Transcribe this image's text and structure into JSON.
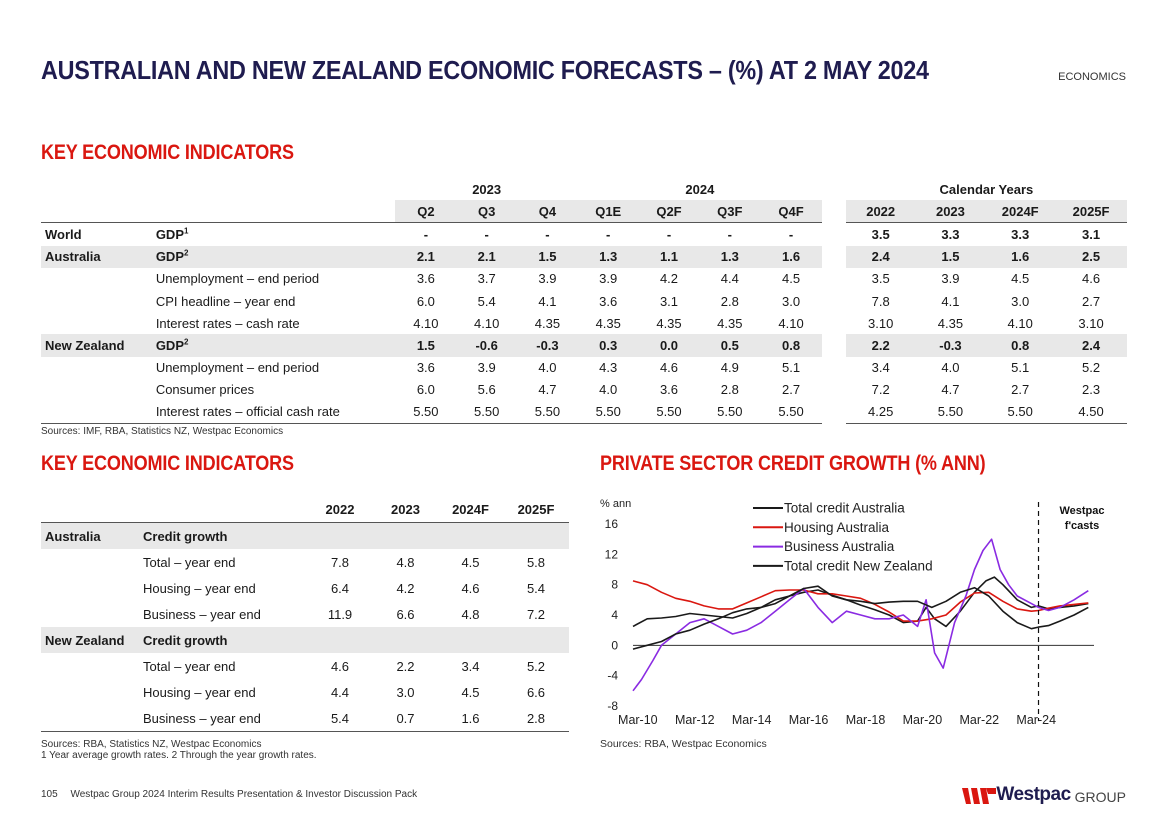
{
  "header": {
    "title": "AUSTRALIAN AND NEW ZEALAND ECONOMIC FORECASTS – (%) AT 2 MAY 2024",
    "section_tag": "ECONOMICS"
  },
  "indicators": {
    "heading": "KEY ECONOMIC INDICATORS",
    "year_2023": "2023",
    "year_2024": "2024",
    "calendar_years": "Calendar Years",
    "quarter_headers": [
      "Q2",
      "Q3",
      "Q4",
      "Q1E",
      "Q2F",
      "Q3F",
      "Q4F"
    ],
    "annual_headers": [
      "2022",
      "2023",
      "2024F",
      "2025F"
    ],
    "rows": [
      {
        "region": "World",
        "indicator": "GDP",
        "sup": "1",
        "quarters": [
          "-",
          "-",
          "-",
          "-",
          "-",
          "-",
          "-"
        ],
        "annual": [
          "3.5",
          "3.3",
          "3.3",
          "3.1"
        ]
      },
      {
        "region": "Australia",
        "indicator": "GDP",
        "sup": "2",
        "quarters": [
          "2.1",
          "2.1",
          "1.5",
          "1.3",
          "1.1",
          "1.3",
          "1.6"
        ],
        "annual": [
          "2.4",
          "1.5",
          "1.6",
          "2.5"
        ]
      },
      {
        "region": "",
        "indicator": "Unemployment – end period",
        "sup": "",
        "quarters": [
          "3.6",
          "3.7",
          "3.9",
          "3.9",
          "4.2",
          "4.4",
          "4.5"
        ],
        "annual": [
          "3.5",
          "3.9",
          "4.5",
          "4.6"
        ]
      },
      {
        "region": "",
        "indicator": "CPI headline – year end",
        "sup": "",
        "quarters": [
          "6.0",
          "5.4",
          "4.1",
          "3.6",
          "3.1",
          "2.8",
          "3.0"
        ],
        "annual": [
          "7.8",
          "4.1",
          "3.0",
          "2.7"
        ]
      },
      {
        "region": "",
        "indicator": "Interest rates – cash rate",
        "sup": "",
        "quarters": [
          "4.10",
          "4.10",
          "4.35",
          "4.35",
          "4.35",
          "4.35",
          "4.10"
        ],
        "annual": [
          "3.10",
          "4.35",
          "4.10",
          "3.10"
        ]
      },
      {
        "region": "New Zealand",
        "indicator": "GDP",
        "sup": "2",
        "quarters": [
          "1.5",
          "-0.6",
          "-0.3",
          "0.3",
          "0.0",
          "0.5",
          "0.8"
        ],
        "annual": [
          "2.2",
          "-0.3",
          "0.8",
          "2.4"
        ]
      },
      {
        "region": "",
        "indicator": "Unemployment – end period",
        "sup": "",
        "quarters": [
          "3.6",
          "3.9",
          "4.0",
          "4.3",
          "4.6",
          "4.9",
          "5.1"
        ],
        "annual": [
          "3.4",
          "4.0",
          "5.1",
          "5.2"
        ]
      },
      {
        "region": "",
        "indicator": "Consumer prices",
        "sup": "",
        "quarters": [
          "6.0",
          "5.6",
          "4.7",
          "4.0",
          "3.6",
          "2.8",
          "2.7"
        ],
        "annual": [
          "7.2",
          "4.7",
          "2.7",
          "2.3"
        ]
      },
      {
        "region": "",
        "indicator": "Interest rates – official cash rate",
        "sup": "",
        "quarters": [
          "5.50",
          "5.50",
          "5.50",
          "5.50",
          "5.50",
          "5.50",
          "5.50"
        ],
        "annual": [
          "4.25",
          "5.50",
          "5.50",
          "4.50"
        ]
      }
    ],
    "sources": "Sources: IMF, RBA, Statistics NZ, Westpac Economics"
  },
  "credit": {
    "heading": "KEY ECONOMIC INDICATORS",
    "headers": [
      "2022",
      "2023",
      "2024F",
      "2025F"
    ],
    "rows": [
      {
        "region": "Australia",
        "label": "Credit growth",
        "values": [
          "",
          "",
          "",
          ""
        ],
        "hl": true
      },
      {
        "region": "",
        "label": "Total – year end",
        "values": [
          "7.8",
          "4.8",
          "4.5",
          "5.8"
        ],
        "hl": false
      },
      {
        "region": "",
        "label": "Housing – year end",
        "values": [
          "6.4",
          "4.2",
          "4.6",
          "5.4"
        ],
        "hl": false
      },
      {
        "region": "",
        "label": "Business – year end",
        "values": [
          "11.9",
          "6.6",
          "4.8",
          "7.2"
        ],
        "hl": false
      },
      {
        "region": "New Zealand",
        "label": "Credit growth",
        "values": [
          "",
          "",
          "",
          ""
        ],
        "hl": true
      },
      {
        "region": "",
        "label": "Total – year end",
        "values": [
          "4.6",
          "2.2",
          "3.4",
          "5.2"
        ],
        "hl": false
      },
      {
        "region": "",
        "label": "Housing – year end",
        "values": [
          "4.4",
          "3.0",
          "4.5",
          "6.6"
        ],
        "hl": false
      },
      {
        "region": "",
        "label": "Business – year end",
        "values": [
          "5.4",
          "0.7",
          "1.6",
          "2.8"
        ],
        "hl": false
      }
    ],
    "sources": "Sources: RBA, Statistics NZ, Westpac Economics",
    "notes": "1 Year average growth rates. 2 Through the year growth rates."
  },
  "chart_heading": "PRIVATE SECTOR CREDIT GROWTH (% ANN)",
  "chart_data": {
    "type": "line",
    "title": "PRIVATE SECTOR CREDIT GROWTH (% ANN)",
    "ylabel": "% ann",
    "ylim": [
      -8,
      16
    ],
    "yticks": [
      -8,
      -4,
      0,
      4,
      8,
      12,
      16
    ],
    "xlim": [
      2010.0,
      2026.2
    ],
    "xticks": [
      {
        "label": "Mar-10",
        "x": 2010.17
      },
      {
        "label": "Mar-12",
        "x": 2012.17
      },
      {
        "label": "Mar-14",
        "x": 2014.17
      },
      {
        "label": "Mar-16",
        "x": 2016.17
      },
      {
        "label": "Mar-18",
        "x": 2018.17
      },
      {
        "label": "Mar-20",
        "x": 2020.17
      },
      {
        "label": "Mar-22",
        "x": 2022.17
      },
      {
        "label": "Mar-24",
        "x": 2024.17
      }
    ],
    "forecast_start": 2024.25,
    "forecast_label": [
      "Westpac",
      "f'casts"
    ],
    "series": [
      {
        "name": "Total credit Australia",
        "color": "#1a1a1a",
        "x": [
          2010.0,
          2010.5,
          2011.0,
          2011.5,
          2012.0,
          2012.5,
          2013.0,
          2013.5,
          2014.0,
          2014.5,
          2015.0,
          2015.5,
          2016.0,
          2016.5,
          2017.0,
          2017.5,
          2018.0,
          2018.5,
          2019.0,
          2019.5,
          2020.0,
          2020.3,
          2020.6,
          2021.0,
          2021.5,
          2022.0,
          2022.4,
          2022.7,
          2023.0,
          2023.5,
          2024.0,
          2024.25,
          2024.6,
          2025.0,
          2025.5,
          2026.0
        ],
        "y": [
          2.5,
          3.5,
          3.6,
          3.8,
          4.2,
          4.0,
          3.8,
          3.6,
          4.2,
          5.0,
          6.0,
          6.5,
          7.0,
          7.3,
          6.6,
          6.0,
          5.3,
          4.7,
          4.0,
          3.0,
          3.2,
          5.0,
          3.5,
          2.5,
          4.5,
          7.0,
          8.5,
          9.0,
          8.0,
          6.0,
          5.0,
          5.2,
          4.8,
          5.0,
          5.2,
          5.5
        ]
      },
      {
        "name": "Housing Australia",
        "color": "#da1710",
        "x": [
          2010.0,
          2010.5,
          2011.0,
          2011.5,
          2012.0,
          2012.5,
          2013.0,
          2013.5,
          2014.0,
          2014.5,
          2015.0,
          2015.5,
          2016.0,
          2016.5,
          2017.0,
          2017.5,
          2018.0,
          2018.5,
          2019.0,
          2019.5,
          2020.0,
          2020.5,
          2021.0,
          2021.5,
          2022.0,
          2022.5,
          2023.0,
          2023.5,
          2024.0,
          2024.25,
          2024.6,
          2025.0,
          2025.5,
          2026.0
        ],
        "y": [
          8.5,
          8.0,
          7.0,
          6.2,
          5.8,
          5.2,
          4.8,
          4.8,
          5.6,
          6.4,
          7.2,
          7.3,
          7.3,
          6.8,
          6.8,
          6.5,
          6.2,
          5.4,
          4.4,
          3.2,
          3.2,
          3.5,
          4.0,
          5.7,
          6.9,
          7.0,
          5.8,
          4.8,
          4.5,
          4.6,
          4.9,
          5.2,
          5.4,
          5.6
        ]
      },
      {
        "name": "Business Australia",
        "color": "#8a2be2",
        "x": [
          2010.0,
          2010.3,
          2010.7,
          2011.0,
          2011.5,
          2012.0,
          2012.5,
          2013.0,
          2013.5,
          2014.0,
          2014.5,
          2015.0,
          2015.5,
          2016.0,
          2016.5,
          2017.0,
          2017.5,
          2018.0,
          2018.5,
          2019.0,
          2019.5,
          2020.0,
          2020.3,
          2020.6,
          2020.9,
          2021.3,
          2021.7,
          2022.0,
          2022.3,
          2022.6,
          2022.9,
          2023.2,
          2023.5,
          2024.0,
          2024.25,
          2024.6,
          2025.0,
          2025.5,
          2026.0
        ],
        "y": [
          -6.0,
          -4.5,
          -2.0,
          0.0,
          1.5,
          3.0,
          3.5,
          2.5,
          1.5,
          2.0,
          3.0,
          4.5,
          6.0,
          7.5,
          5.0,
          3.0,
          4.5,
          4.0,
          3.5,
          3.5,
          4.0,
          2.5,
          6.0,
          -1.0,
          -3.0,
          3.0,
          6.5,
          10.0,
          12.5,
          14.0,
          10.0,
          8.0,
          6.5,
          5.5,
          5.0,
          4.6,
          5.0,
          6.0,
          7.2
        ]
      },
      {
        "name": "Total credit New Zealand",
        "color": "#1a1a1a",
        "x": [
          2010.0,
          2010.5,
          2011.0,
          2011.5,
          2012.0,
          2012.5,
          2013.0,
          2013.5,
          2014.0,
          2014.5,
          2015.0,
          2015.5,
          2016.0,
          2016.5,
          2017.0,
          2017.5,
          2018.0,
          2018.5,
          2019.0,
          2019.5,
          2020.0,
          2020.5,
          2021.0,
          2021.5,
          2022.0,
          2022.5,
          2023.0,
          2023.5,
          2024.0,
          2024.25,
          2024.6,
          2025.0,
          2025.5,
          2026.0
        ],
        "y": [
          -0.5,
          0.0,
          0.5,
          1.5,
          2.0,
          2.8,
          3.5,
          4.3,
          4.8,
          5.0,
          5.5,
          6.5,
          7.5,
          7.8,
          6.5,
          6.0,
          5.8,
          5.5,
          5.7,
          5.8,
          5.8,
          5.0,
          5.8,
          7.0,
          7.6,
          6.5,
          4.5,
          3.0,
          2.2,
          2.4,
          2.6,
          3.2,
          4.0,
          5.0
        ]
      }
    ]
  },
  "chart_sources": "Sources: RBA, Westpac Economics",
  "footer": {
    "page": "105",
    "text": "Westpac Group 2024 Interim Results Presentation & Investor Discussion Pack"
  },
  "logo": {
    "brand": "Westpac",
    "group": "GROUP"
  },
  "colors": {
    "navy": "#1f1c4f",
    "red": "#da1710",
    "band": "#e8e8e8"
  }
}
